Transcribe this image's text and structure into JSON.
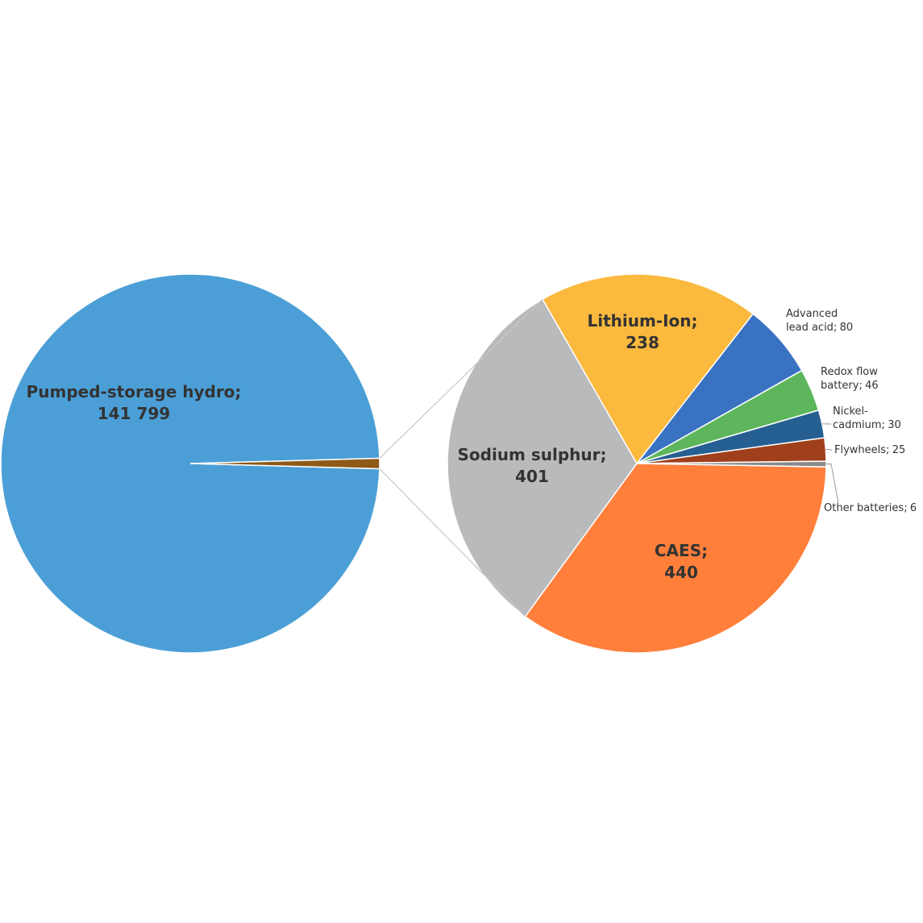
{
  "chart_data": [
    {
      "type": "pie",
      "categories": [
        "Pumped-storage hydro",
        null
      ],
      "values": [
        141799,
        1266
      ],
      "value_labels": [
        "141 799",
        null
      ],
      "colors": [
        "#4b9fd6",
        "#8d5a17"
      ],
      "label_separator": ";"
    },
    {
      "type": "pie",
      "categories": [
        "CAES",
        "Sodium sulphur",
        "Lithium-Ion",
        "Advanced lead acid",
        "Redox flow battery",
        "Nickel-cadmium",
        "Flywheels",
        "Other batteries"
      ],
      "values": [
        440,
        401,
        238,
        80,
        46,
        30,
        25,
        6
      ],
      "colors": [
        "#ff7f3b",
        "#b9babc",
        "#fbb93e",
        "#3a72c2",
        "#5db65b",
        "#265f92",
        "#a03f1b",
        "#8a8a8a"
      ],
      "label_separator": ";"
    }
  ]
}
